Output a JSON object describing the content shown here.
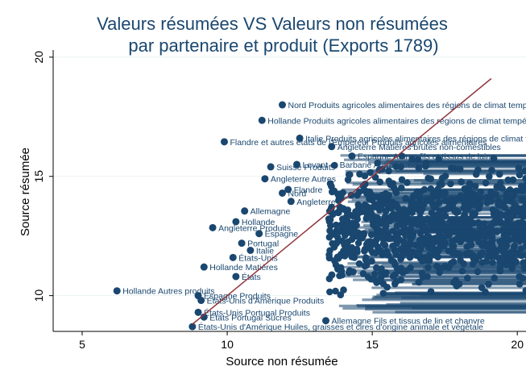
{
  "chart_data": {
    "type": "scatter",
    "title_lines": [
      "Valeurs résumées VS Valeurs non résumées",
      "par partenaire et produit (Exports 1789)"
    ],
    "xlabel": "Source non résumée",
    "ylabel": "Source résumée",
    "xlim": [
      4,
      20.3
    ],
    "ylim": [
      8.5,
      20.3
    ],
    "xticks": [
      5,
      10,
      15,
      20
    ],
    "yticks": [
      10,
      15,
      20
    ],
    "grid": "horizontal",
    "colors": {
      "points": "#1a476f",
      "fit_line": "#90353b",
      "grid": "#eaf2f3",
      "title": "#1a476f"
    },
    "fit_line": {
      "x": [
        8.8,
        19.1
      ],
      "y": [
        8.8,
        19.1
      ]
    },
    "labeled_points": [
      {
        "x": 11.9,
        "y": 18.0,
        "label": "Nord Produits agricoles alimentaires des régions de climat tempéré"
      },
      {
        "x": 11.2,
        "y": 17.35,
        "label": "Hollande Produits agricoles alimentaires des régions de climat tempéré"
      },
      {
        "x": 9.9,
        "y": 16.45,
        "label": "Flandre et autres états de l'Empereur Produits agricoles alimentaires"
      },
      {
        "x": 12.5,
        "y": 16.6,
        "label": "Italie Produits agricoles alimentaires des régions de climat tempéré"
      },
      {
        "x": 13.6,
        "y": 16.25,
        "label": "Angleterre Matières brutes non-comestibles"
      },
      {
        "x": 14.3,
        "y": 15.85,
        "label": "Espagne Autres fils et tissus de laine"
      },
      {
        "x": 12.4,
        "y": 15.5,
        "label": "Levant et Barbarie Autres produits"
      },
      {
        "x": 11.5,
        "y": 15.4,
        "label": "Suisse Produits"
      },
      {
        "x": 11.3,
        "y": 14.9,
        "label": "Angleterre Autres"
      },
      {
        "x": 12.1,
        "y": 14.45,
        "label": "Flandre"
      },
      {
        "x": 11.9,
        "y": 14.3,
        "label": "Nord"
      },
      {
        "x": 12.2,
        "y": 13.95,
        "label": "Angleterre"
      },
      {
        "x": 10.6,
        "y": 13.55,
        "label": "Allemagne"
      },
      {
        "x": 10.3,
        "y": 13.1,
        "label": "Hollande"
      },
      {
        "x": 9.5,
        "y": 12.85,
        "label": "Angleterre Produits"
      },
      {
        "x": 11.1,
        "y": 12.6,
        "label": "Espagne"
      },
      {
        "x": 10.5,
        "y": 12.2,
        "label": "Portugal"
      },
      {
        "x": 10.8,
        "y": 11.9,
        "label": "Italie"
      },
      {
        "x": 10.2,
        "y": 11.6,
        "label": "États-Unis"
      },
      {
        "x": 9.2,
        "y": 11.2,
        "label": "Hollande Matières"
      },
      {
        "x": 10.3,
        "y": 10.8,
        "label": "États"
      },
      {
        "x": 6.2,
        "y": 10.2,
        "label": "Hollande Autres produits"
      },
      {
        "x": 9.0,
        "y": 10.0,
        "label": "Espagne Produits"
      },
      {
        "x": 9.1,
        "y": 9.8,
        "label": "États-Unis d'Amérique Produits"
      },
      {
        "x": 9.0,
        "y": 9.3,
        "label": "États-Unis Portugal Produits"
      },
      {
        "x": 9.2,
        "y": 9.1,
        "label": "États Portugal Sucres"
      },
      {
        "x": 13.4,
        "y": 8.95,
        "label": "Allemagne Fils et tissus de lin et chanvre"
      },
      {
        "x": 8.8,
        "y": 8.7,
        "label": "États-Unis d'Amérique Huiles, graisses et cires d'origine animale et végétale"
      }
    ]
  }
}
